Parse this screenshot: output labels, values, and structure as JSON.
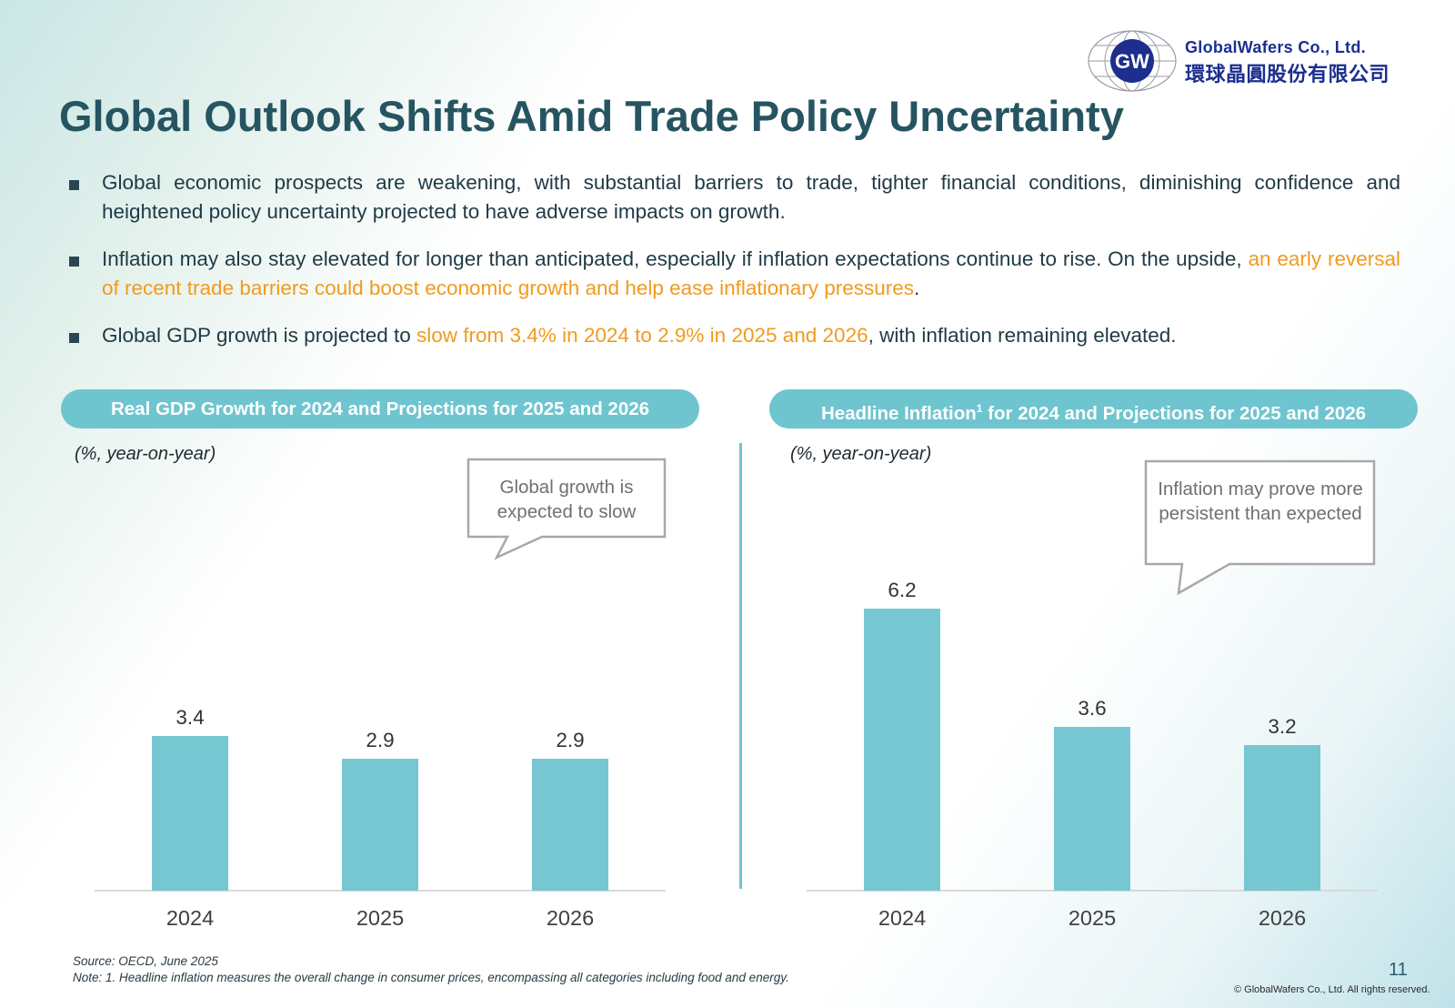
{
  "logo": {
    "name_en": "GlobalWafers Co., Ltd.",
    "name_zh": "環球晶圓股份有限公司",
    "monogram": "GW",
    "color": "#1c2f8f"
  },
  "title": "Global Outlook Shifts Amid Trade Policy Uncertainty",
  "bullets": [
    {
      "parts": [
        {
          "text": "Global economic prospects are weakening, with substantial barriers to trade, tighter financial conditions, diminishing confidence and heightened policy uncertainty projected to have adverse impacts on growth.",
          "highlight": false
        }
      ]
    },
    {
      "parts": [
        {
          "text": "Inflation may also stay elevated for longer than anticipated, especially if inflation expectations continue to rise. On the upside, ",
          "highlight": false
        },
        {
          "text": "an early reversal of recent trade barriers could boost economic growth and help ease inflationary pressures",
          "highlight": true
        },
        {
          "text": ".",
          "highlight": false
        }
      ]
    },
    {
      "parts": [
        {
          "text": "Global GDP growth is projected to ",
          "highlight": false
        },
        {
          "text": "slow from 3.4% in 2024 to 2.9% in 2025 and 2026",
          "highlight": true
        },
        {
          "text": ", with inflation remaining elevated.",
          "highlight": false
        }
      ]
    }
  ],
  "colors": {
    "accent": "#6fc5cf",
    "bar": "#77c7d2",
    "highlight": "#f29a1e",
    "title": "#265461"
  },
  "chart_data": [
    {
      "type": "bar",
      "title": "Real GDP Growth for 2024 and Projections for 2025 and 2026",
      "unit_label": "(%, year-on-year)",
      "categories": [
        "2024",
        "2025",
        "2026"
      ],
      "values": [
        3.4,
        2.9,
        2.9
      ],
      "value_labels": [
        "3.4",
        "2.9",
        "2.9"
      ],
      "ylim": [
        0,
        8
      ],
      "callout": "Global growth is expected to slow"
    },
    {
      "type": "bar",
      "title": "Headline Inflation",
      "title_sup": "1",
      "title_suffix": " for 2024 and Projections for 2025 and 2026",
      "unit_label": "(%, year-on-year)",
      "categories": [
        "2024",
        "2025",
        "2026"
      ],
      "values": [
        6.2,
        3.6,
        3.2
      ],
      "value_labels": [
        "6.2",
        "3.6",
        "3.2"
      ],
      "ylim": [
        0,
        8
      ],
      "callout": "Inflation may prove more persistent than expected"
    }
  ],
  "footer": {
    "source": "Source: OECD, June 2025",
    "note": "Note: 1. Headline inflation measures the overall change in consumer prices, encompassing all categories including food and energy.",
    "page_number": "11",
    "copyright": "© GlobalWafers Co., Ltd.  All rights reserved."
  }
}
